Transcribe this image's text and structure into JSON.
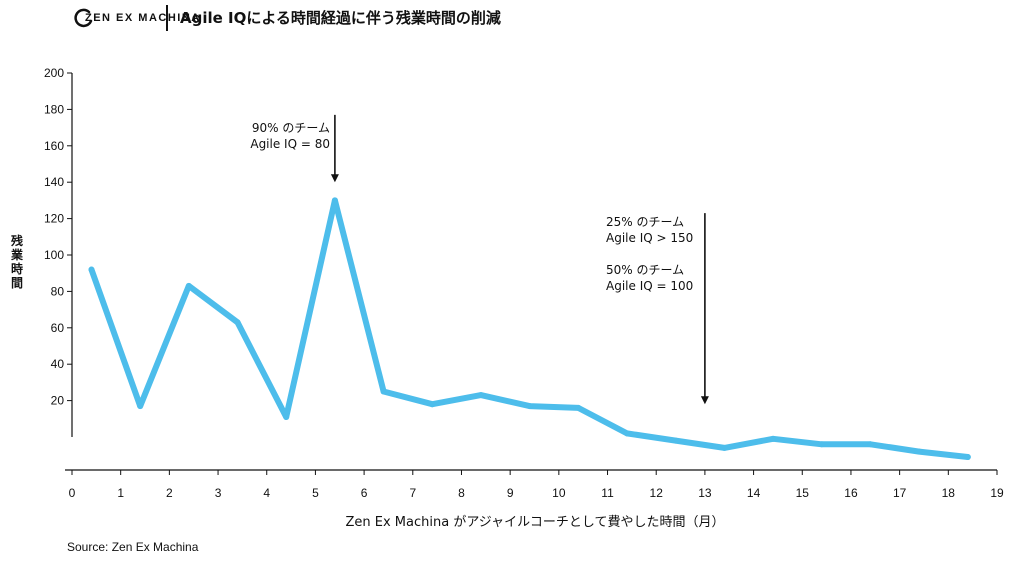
{
  "header": {
    "logo_text": "ZEN EX MACHINA",
    "title": "Agile IQによる時間経過に伴う残業時間の削減"
  },
  "source": "Source: Zen Ex Machina",
  "colors": {
    "line": "#4DBDEB",
    "axis": "#111111"
  },
  "chart_data": {
    "type": "line",
    "title": "Agile IQによる時間経過に伴う残業時間の削減",
    "xlabel": "Zen Ex Machina がアジャイルコーチとして費やした時間（月）",
    "ylabel": "残業時間",
    "xlim": [
      0,
      19
    ],
    "ylim": [
      0,
      200
    ],
    "x_ticks": [
      0,
      1,
      2,
      3,
      4,
      5,
      6,
      7,
      8,
      9,
      10,
      11,
      12,
      13,
      14,
      15,
      16,
      17,
      18,
      19
    ],
    "y_ticks": [
      20,
      40,
      60,
      80,
      100,
      120,
      140,
      160,
      180,
      200
    ],
    "series": [
      {
        "x": [
          0.4,
          1.4,
          2.4,
          3.4,
          4.4,
          5.4,
          6.4,
          7.4,
          8.4,
          9.4,
          10.4,
          11.4,
          12.4,
          13.4,
          14.4,
          15.4,
          16.4,
          17.4,
          18.4
        ],
        "y": [
          92,
          17,
          83,
          63,
          11,
          130,
          25,
          18,
          23,
          17,
          16,
          2,
          -2,
          -6,
          -1,
          -4,
          -4,
          -8,
          -11
        ]
      }
    ],
    "annotations": [
      {
        "lines": [
          "90% のチーム",
          "Agile IQ = 80"
        ],
        "arrow_x": 5.4,
        "arrow_from_y": 177,
        "arrow_to_y": 140
      },
      {
        "lines": [
          "25% のチーム",
          "Agile IQ > 150",
          "",
          "50% のチーム",
          "Agile IQ = 100"
        ],
        "arrow_x": 13,
        "arrow_from_y": 123,
        "arrow_to_y": 18
      }
    ],
    "grid": false
  }
}
